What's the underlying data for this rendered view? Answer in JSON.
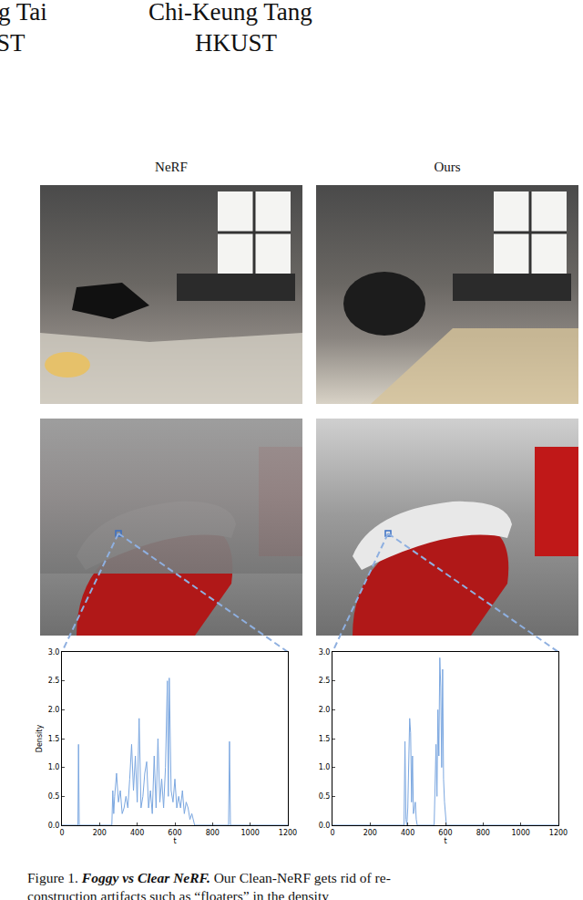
{
  "header": {
    "authors": [
      "g Tai",
      "Chi-Keung Tang"
    ],
    "affiliations": [
      "ST",
      "HKUST"
    ]
  },
  "columns": [
    "NeRF",
    "Ours"
  ],
  "chart_data": [
    {
      "type": "line",
      "x_label": "t",
      "y_label": "Density",
      "xlim": [
        0,
        1200
      ],
      "xticks": [
        0,
        200,
        400,
        600,
        800,
        1000,
        1200
      ],
      "ylim": [
        0,
        3.0
      ],
      "yticks": [
        {
          "value": 0,
          "label": "0.0"
        },
        {
          "value": 0.5,
          "label": "0.5"
        },
        {
          "value": 1,
          "label": "1.0"
        },
        {
          "value": 1.5,
          "label": "1.5"
        },
        {
          "value": 2,
          "label": "2.0"
        },
        {
          "value": 2.5,
          "label": "2.5"
        },
        {
          "value": 3,
          "label": "3.0"
        }
      ],
      "series": [
        {
          "color": "#7ba7e0",
          "x": [
            0,
            85,
            88,
            90,
            92,
            95,
            265,
            270,
            275,
            280,
            290,
            300,
            310,
            320,
            330,
            340,
            350,
            360,
            370,
            380,
            390,
            400,
            410,
            420,
            430,
            440,
            450,
            460,
            470,
            480,
            490,
            500,
            510,
            520,
            530,
            540,
            550,
            560,
            565,
            570,
            575,
            580,
            590,
            600,
            610,
            620,
            630,
            640,
            650,
            660,
            670,
            680,
            690,
            700,
            705,
            710,
            880,
            885,
            890,
            895,
            900,
            1200
          ],
          "values": [
            0,
            0,
            1.4,
            0.3,
            0,
            0,
            0,
            0.6,
            0.2,
            0.5,
            0.9,
            0.4,
            0.6,
            0.2,
            0.3,
            0.5,
            0.3,
            0.8,
            1.4,
            0.6,
            1.2,
            0.4,
            1.85,
            0.3,
            0.5,
            0.9,
            1.1,
            0.3,
            0.6,
            0.2,
            1.2,
            0.3,
            1.5,
            0.4,
            0.8,
            0.3,
            1.0,
            2.5,
            0.5,
            2.55,
            1.4,
            0.6,
            0.4,
            0.8,
            0.3,
            0.5,
            0.3,
            0.6,
            0.2,
            0.4,
            0.3,
            0.1,
            0.2,
            0.05,
            0,
            0,
            0,
            0,
            1.45,
            0,
            0,
            0
          ]
        }
      ]
    },
    {
      "type": "line",
      "x_label": "t",
      "xlim": [
        0,
        1200
      ],
      "xticks": [
        0,
        200,
        400,
        600,
        800,
        1000,
        1200
      ],
      "ylim": [
        0,
        3.0
      ],
      "yticks": [
        {
          "value": 0,
          "label": "0.0"
        },
        {
          "value": 0.5,
          "label": "0.5"
        },
        {
          "value": 1,
          "label": "1.0"
        },
        {
          "value": 1.5,
          "label": "1.5"
        },
        {
          "value": 2,
          "label": "2.0"
        },
        {
          "value": 2.5,
          "label": "2.5"
        },
        {
          "value": 3,
          "label": "3.0"
        }
      ],
      "series": [
        {
          "color": "#7ba7e0",
          "x": [
            0,
            380,
            385,
            390,
            395,
            400,
            410,
            415,
            420,
            425,
            430,
            440,
            445,
            450,
            540,
            550,
            555,
            560,
            565,
            570,
            575,
            580,
            585,
            590,
            595,
            600,
            605,
            1200
          ],
          "values": [
            0,
            0,
            1.45,
            0.1,
            0,
            0.3,
            1.85,
            1.6,
            0.4,
            1.2,
            0.2,
            0.4,
            0.1,
            0,
            0,
            1.4,
            0.5,
            2.0,
            1.2,
            2.9,
            2.4,
            1.0,
            2.7,
            0.8,
            0.4,
            0.1,
            0,
            0
          ]
        }
      ]
    }
  ],
  "caption": {
    "label": "Figure 1.",
    "title": "Foggy vs Clear NeRF.",
    "lines": [
      "Our Clean-NeRF gets rid of re-",
      "construction artifacts such as “floaters” in the density"
    ]
  }
}
